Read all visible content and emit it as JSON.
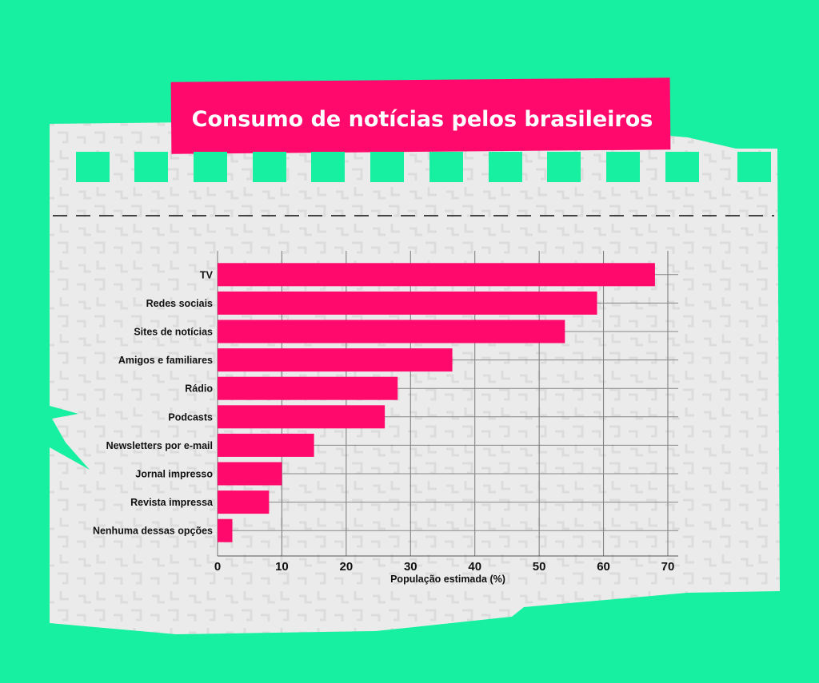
{
  "colors": {
    "background": "#16f0a0",
    "paper": "#ebebeb",
    "accent": "#ff0a6c",
    "text": "#111111"
  },
  "chart_data": {
    "type": "bar",
    "orientation": "horizontal",
    "title": "Consumo de notícias pelos brasileiros",
    "xlabel": "População estimada (%)",
    "ylabel": "",
    "xlim": [
      0,
      70
    ],
    "xticks": [
      0,
      10,
      20,
      30,
      40,
      50,
      60,
      70
    ],
    "grid": true,
    "categories": [
      "TV",
      "Redes sociais",
      "Sites de notícias",
      "Amigos e familiares",
      "Rádio",
      "Podcasts",
      "Newsletters por e-mail",
      "Jornal impresso",
      "Revista impressa",
      "Nenhuma dessas opções"
    ],
    "values": [
      68,
      59,
      54,
      36.5,
      28,
      26,
      15,
      10,
      8,
      2.3
    ]
  }
}
